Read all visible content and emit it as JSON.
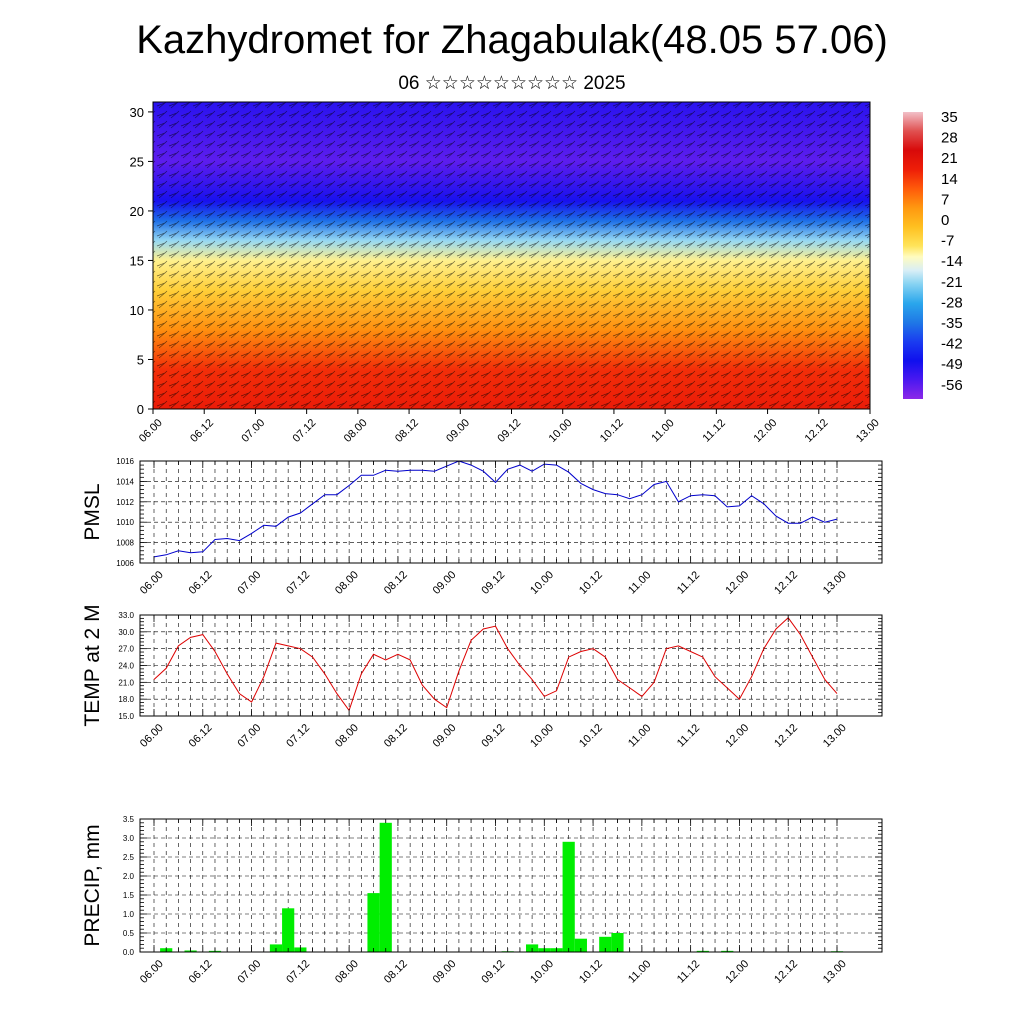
{
  "header": {
    "title": "Kazhydromet for Zhagabulak(48.05 57.06)",
    "subtitle": "06 ☆☆☆☆☆☆☆☆☆ 2025"
  },
  "time_labels": [
    "06.00",
    "06.12",
    "07.00",
    "07.12",
    "08.00",
    "08.12",
    "09.00",
    "09.12",
    "10.00",
    "10.12",
    "11.00",
    "11.12",
    "12.00",
    "12.12",
    "13.00"
  ],
  "colors": {
    "pmsl_line": "#0000cc",
    "temp_line": "#dd0000",
    "precip_bar": "#00ee00"
  },
  "chart_data": [
    {
      "type": "heatmap",
      "name": "upper-air-temperature-section",
      "y_ticks": [
        "0",
        "5",
        "10",
        "15",
        "20",
        "25",
        "30"
      ],
      "ylim": [
        0,
        31
      ],
      "colorbar_labels": [
        "35",
        "28",
        "21",
        "14",
        "7",
        "0",
        "-7",
        "-14",
        "-21",
        "-28",
        "-35",
        "-42",
        "-49",
        "-56"
      ],
      "colorbar_range": [
        -63,
        42
      ],
      "rows": [
        {
          "level": 0,
          "value": 22
        },
        {
          "level": 4,
          "value": 19
        },
        {
          "level": 8,
          "value": 8
        },
        {
          "level": 12,
          "value": -3
        },
        {
          "level": 15,
          "value": -9
        },
        {
          "level": 17,
          "value": -20
        },
        {
          "level": 19,
          "value": -36
        },
        {
          "level": 21,
          "value": -50
        },
        {
          "level": 25,
          "value": -58
        },
        {
          "level": 31,
          "value": -52
        }
      ]
    },
    {
      "type": "line",
      "name": "pmsl",
      "ylabel": "PMSL",
      "ylim": [
        1006,
        1016
      ],
      "y_ticks": [
        "1006",
        "1008",
        "1010",
        "1012",
        "1014",
        "1016"
      ],
      "series": [
        {
          "values": [
            1006.6,
            1006.8,
            1007.2,
            1007.0,
            1007.1,
            1008.3,
            1008.4,
            1008.2,
            1008.9,
            1009.7,
            1009.6,
            1010.5,
            1010.9,
            1011.8,
            1012.7,
            1012.7,
            1013.6,
            1014.6,
            1014.6,
            1015.1,
            1015.0,
            1015.1,
            1015.1,
            1015.0,
            1015.5,
            1016.0,
            1015.6,
            1015.0,
            1013.9,
            1015.2,
            1015.6,
            1015.0,
            1015.7,
            1015.6,
            1014.9,
            1013.8,
            1013.2,
            1012.8,
            1012.7,
            1012.3,
            1012.7,
            1013.7,
            1014.0,
            1012.0,
            1012.6,
            1012.7,
            1012.6,
            1011.5,
            1011.6,
            1012.6,
            1011.8,
            1010.6,
            1009.9,
            1009.9,
            1010.5,
            1010.0,
            1010.3
          ]
        }
      ]
    },
    {
      "type": "line",
      "name": "temp-2m",
      "ylabel": "TEMP at 2 M",
      "ylim": [
        15,
        33
      ],
      "y_ticks": [
        "15.0",
        "18.0",
        "21.0",
        "24.0",
        "27.0",
        "30.0",
        "33.0"
      ],
      "series": [
        {
          "values": [
            21.5,
            23.5,
            27.5,
            29.0,
            29.5,
            26.5,
            22.5,
            19.0,
            17.5,
            22.0,
            28.0,
            27.5,
            27.0,
            25.5,
            22.5,
            19.0,
            16.0,
            22.5,
            26.0,
            25.0,
            26.0,
            25.0,
            20.5,
            18.0,
            16.5,
            23.0,
            28.5,
            30.5,
            31.0,
            27.0,
            24.0,
            21.5,
            18.5,
            19.5,
            25.5,
            26.5,
            27.0,
            25.5,
            21.5,
            20.0,
            18.5,
            21.0,
            27.0,
            27.5,
            26.5,
            25.5,
            22.0,
            20.0,
            18.0,
            22.0,
            27.0,
            30.5,
            32.5,
            29.5,
            25.5,
            21.5,
            19.0
          ]
        }
      ]
    },
    {
      "type": "bar",
      "name": "precip",
      "ylabel": "PRECIP, mm",
      "ylim": [
        0,
        3.5
      ],
      "y_ticks": [
        "0.0",
        "0.5",
        "1.0",
        "1.5",
        "2.0",
        "2.5",
        "3.0",
        "3.5"
      ],
      "values": [
        0,
        0.1,
        0,
        0.04,
        0,
        0.03,
        0,
        0,
        0,
        0,
        0.2,
        1.15,
        0.12,
        0,
        0,
        0,
        0,
        0,
        1.55,
        3.4,
        0,
        0,
        0,
        0,
        0,
        0,
        0,
        0,
        0,
        0.02,
        0,
        0.2,
        0.1,
        0.1,
        2.9,
        0.35,
        0,
        0.4,
        0.5,
        0,
        0,
        0,
        0,
        0,
        0,
        0.03,
        0,
        0.03,
        0,
        0,
        0,
        0,
        0,
        0,
        0,
        0,
        0.02
      ]
    }
  ]
}
